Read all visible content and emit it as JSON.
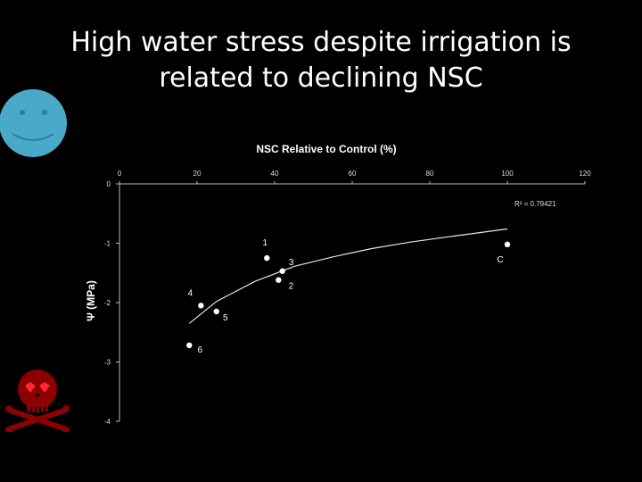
{
  "slide": {
    "title_line1": "High water stress despite irrigation is",
    "title_line2": "related to declining NSC"
  },
  "icons": {
    "smiley": "smiley-face-icon",
    "skull": "skull-crossbones-icon",
    "smiley_color": "#4aa8c8",
    "skull_color": "#8b0000"
  },
  "chart_data": {
    "type": "scatter",
    "title": "NSC Relative to Control  (%)",
    "ylabel": "Ψ  (MPa)",
    "xlim": [
      0,
      120
    ],
    "ylim": [
      -4,
      0
    ],
    "x_ticks": [
      0,
      20,
      40,
      60,
      80,
      100,
      120
    ],
    "y_ticks": [
      0,
      -1,
      -2,
      -3,
      -4
    ],
    "x_axis_position": "top",
    "grid": false,
    "points": [
      {
        "label": "1",
        "x": 38,
        "y": -1.25
      },
      {
        "label": "3",
        "x": 42,
        "y": -1.47
      },
      {
        "label": "2",
        "x": 41,
        "y": -1.62
      },
      {
        "label": "4",
        "x": 21,
        "y": -2.05
      },
      {
        "label": "5",
        "x": 25,
        "y": -2.15
      },
      {
        "label": "6",
        "x": 18,
        "y": -2.72
      },
      {
        "label": "C",
        "x": 100,
        "y": -1.02
      }
    ],
    "trendline": {
      "type": "logarithmic",
      "r2_label": "R² = 0.79421",
      "x": [
        18,
        25,
        35,
        45,
        55,
        65,
        75,
        85,
        100
      ],
      "y": [
        -2.35,
        -1.98,
        -1.64,
        -1.39,
        -1.23,
        -1.09,
        -0.98,
        -0.89,
        -0.76
      ]
    },
    "colors": {
      "points": "#ffffff",
      "trendline": "#e6e6e6",
      "axis": "#bbbbbb"
    }
  }
}
